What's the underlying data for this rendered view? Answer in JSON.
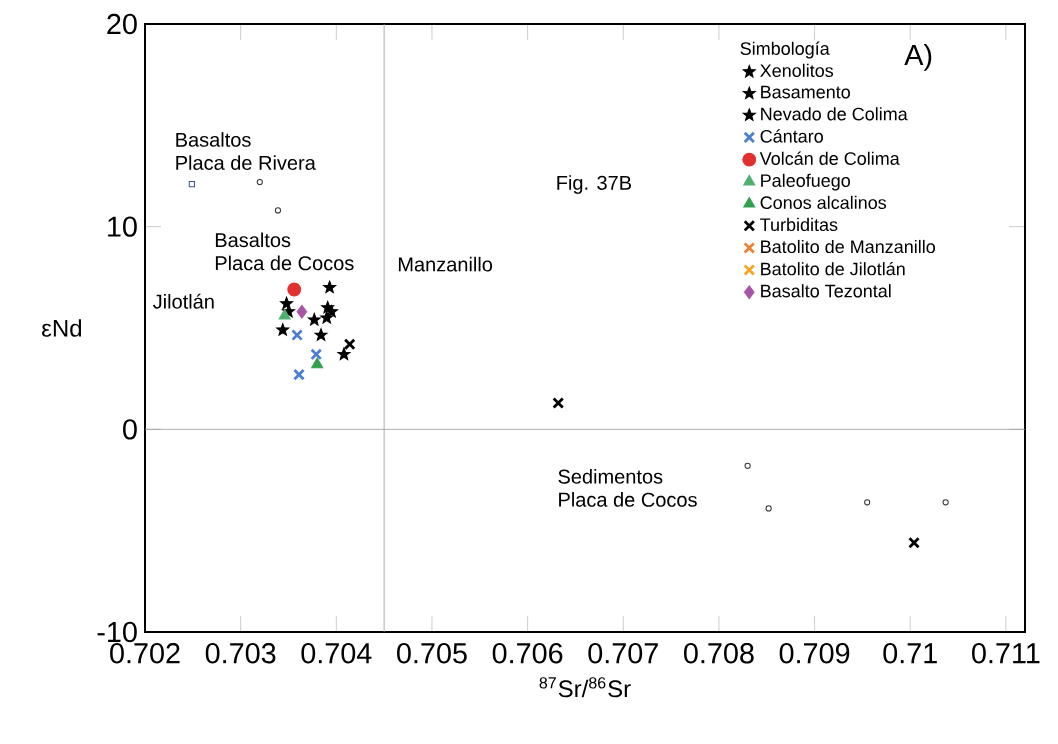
{
  "chart_data": {
    "type": "scatter",
    "xlabel": "$^{87}$Sr/$^{86}$Sr",
    "ylabel": "εNd",
    "legend_title": "Simbología",
    "legend": "top right",
    "grid": false,
    "xlim": [
      0.702,
      0.7112
    ],
    "ylim": [
      -10,
      20
    ],
    "xticks": [
      0.702,
      0.703,
      0.704,
      0.705,
      0.706,
      0.707,
      0.708,
      0.709,
      0.71,
      0.711
    ],
    "yticks": [
      -10,
      0,
      10,
      20
    ],
    "ref_lines": [
      {
        "axis": "x",
        "value": 0.7045,
        "color": "#999999"
      },
      {
        "axis": "y",
        "value": 0,
        "color": "#999999"
      }
    ],
    "annotations": [
      "A)",
      "Basaltos",
      "Placa de Rivera",
      "Basaltos",
      "Placa de Cocos",
      "Jilotlán",
      "Manzanillo",
      "Fig. 37B",
      "Sedimentos",
      "Placa de Cocos"
    ],
    "series": [
      {
        "name": "Xenolitos",
        "color": "#000000",
        "marker": "star",
        "x": [
          0.70393,
          0.70391,
          0.70395,
          0.7039,
          0.70384
        ],
        "values": [
          7.0,
          6.0,
          5.8,
          5.5,
          4.65
        ]
      },
      {
        "name": "Basamento",
        "color": "#000000",
        "marker": "star",
        "x": [
          0.70377,
          0.70408
        ],
        "values": [
          5.4,
          3.7
        ]
      },
      {
        "name": "Nevado de Colima",
        "color": "#000000",
        "marker": "star",
        "x": [
          0.70348,
          0.7035,
          0.70344
        ],
        "values": [
          6.2,
          5.8,
          4.9
        ]
      },
      {
        "name": "Cántaro",
        "color": "#4a7fd0",
        "marker": "cross",
        "x": [
          0.70359,
          0.70379,
          0.70361
        ],
        "values": [
          4.65,
          3.7,
          2.7
        ]
      },
      {
        "name": "Volcán de Colima",
        "color": "#e03030",
        "marker": "circle",
        "x": [
          0.70356
        ],
        "values": [
          6.9
        ]
      },
      {
        "name": "Paleofuego",
        "color": "#50b070",
        "marker": "triangle",
        "x": [
          0.70346
        ],
        "values": [
          5.6
        ]
      },
      {
        "name": "Conos alcalinos",
        "color": "#30a050",
        "marker": "triangle",
        "x": [
          0.7038
        ],
        "values": [
          3.2
        ]
      },
      {
        "name": "Turbiditas",
        "color": "#000000",
        "marker": "cross",
        "x": [
          0.70414,
          0.70632,
          0.71004
        ],
        "values": [
          4.2,
          1.3,
          -5.6
        ]
      },
      {
        "name": "Batolito de Manzanillo",
        "color": "#f08030",
        "marker": "cross"
      },
      {
        "name": "Batolito de Jilotlán",
        "color": "#f5a623",
        "marker": "cross"
      },
      {
        "name": "Basalto Tezontal",
        "color": "#a855a8",
        "marker": "diamond",
        "x": [
          0.70364
        ],
        "values": [
          5.8
        ]
      },
      {
        "color": "#4050a0",
        "marker": "square",
        "x": [
          0.70249
        ],
        "values": [
          12.1
        ]
      },
      {
        "color": "#333333",
        "marker": "circle",
        "x": [
          0.7032,
          0.70339
        ],
        "values": [
          12.2,
          10.8
        ]
      },
      {
        "color": "#333333",
        "marker": "circle",
        "x": [
          0.7083,
          0.70852,
          0.70955,
          0.71037
        ],
        "values": [
          -1.8,
          -3.9,
          -3.6,
          -3.6
        ]
      }
    ]
  }
}
